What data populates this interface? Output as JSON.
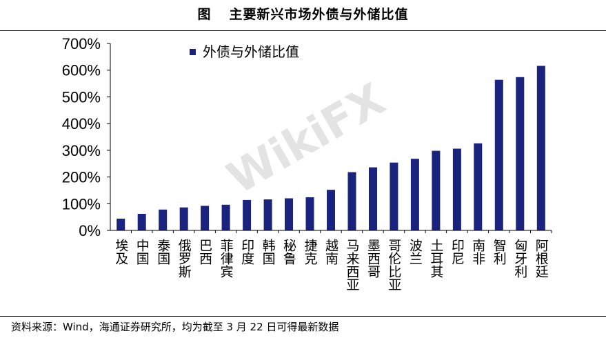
{
  "figure": {
    "label": "图",
    "title": "主要新兴市场外债与外储比值"
  },
  "source_note": "资料来源：Wind，海通证券研究所，均为截至 3 月 22 日可得最新数据",
  "watermark": "WikiFX",
  "colors": {
    "bar": "#1a237e",
    "axis": "#000000",
    "watermark": "#d8d8d8"
  },
  "chart_data": {
    "type": "bar",
    "title": "主要新兴市场外债与外储比值",
    "xlabel": "",
    "ylabel": "",
    "ylim": [
      0,
      700
    ],
    "yticks": [
      0,
      100,
      200,
      300,
      400,
      500,
      600,
      700
    ],
    "ytick_labels": [
      "0%",
      "100%",
      "200%",
      "300%",
      "400%",
      "500%",
      "600%",
      "700%"
    ],
    "grid": false,
    "legend_position": "top-left",
    "categories": [
      "埃及",
      "中国",
      "泰国",
      "俄罗斯",
      "巴西",
      "菲律宾",
      "印度",
      "韩国",
      "秘鲁",
      "捷克",
      "越南",
      "马来西亚",
      "墨西哥",
      "哥伦比亚",
      "波兰",
      "土耳其",
      "印尼",
      "南非",
      "智利",
      "匈牙利",
      "阿根廷"
    ],
    "series": [
      {
        "name": "外债与外储比值",
        "values": [
          44,
          62,
          78,
          86,
          92,
          96,
          114,
          116,
          120,
          124,
          152,
          218,
          236,
          254,
          268,
          298,
          306,
          326,
          564,
          574,
          616
        ]
      }
    ]
  }
}
